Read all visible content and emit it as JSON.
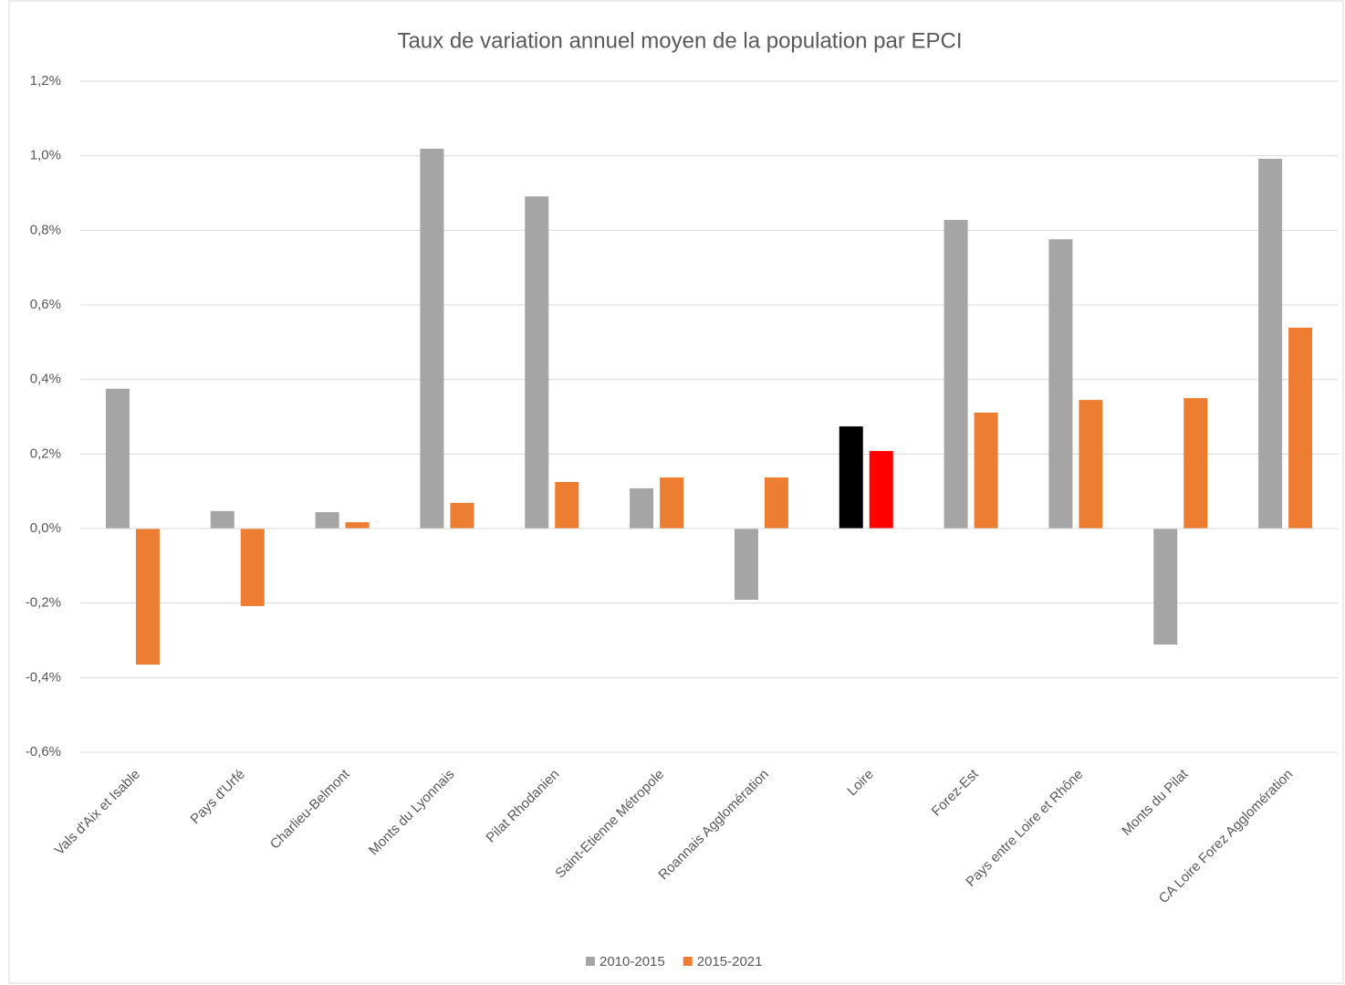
{
  "chart_data": {
    "type": "bar",
    "title": "Taux de variation annuel moyen de la population par EPCI",
    "categories": [
      "Vals d'Aix et Isable",
      "Pays d'Urfé",
      "Charlieu-Belmont",
      "Monts du Lyonnais",
      "Pilat Rhodanien",
      "Saint-Etienne Métropole",
      "Roannais Agglomération",
      "Loire",
      "Forez-Est",
      "Pays entre Loire et Rhône",
      "Monts du Pilat",
      "CA Loire Forez Agglomération"
    ],
    "series": [
      {
        "name": "2010-2015",
        "color": "#a5a5a5",
        "colors": [
          "#a5a5a5",
          "#a5a5a5",
          "#a5a5a5",
          "#a5a5a5",
          "#a5a5a5",
          "#a5a5a5",
          "#a5a5a5",
          "#000000",
          "#a5a5a5",
          "#a5a5a5",
          "#a5a5a5",
          "#a5a5a5"
        ],
        "values": [
          0.375,
          0.047,
          0.044,
          1.019,
          0.891,
          0.108,
          -0.191,
          0.274,
          0.828,
          0.776,
          -0.311,
          0.992
        ]
      },
      {
        "name": "2015-2021",
        "color": "#ed7d31",
        "colors": [
          "#ed7d31",
          "#ed7d31",
          "#ed7d31",
          "#ed7d31",
          "#ed7d31",
          "#ed7d31",
          "#ed7d31",
          "#ff0000",
          "#ed7d31",
          "#ed7d31",
          "#ed7d31",
          "#ed7d31"
        ],
        "values": [
          -0.365,
          -0.208,
          0.017,
          0.069,
          0.125,
          0.137,
          0.137,
          0.208,
          0.311,
          0.345,
          0.35,
          0.539
        ]
      }
    ],
    "ylim": [
      -0.6,
      1.2
    ],
    "yticks": [
      {
        "value": -0.6,
        "label": "-0,6%"
      },
      {
        "value": -0.4,
        "label": "-0,4%"
      },
      {
        "value": -0.2,
        "label": "-0,2%"
      },
      {
        "value": 0,
        "label": "0,0%"
      },
      {
        "value": 0.2,
        "label": "0,2%"
      },
      {
        "value": 0.4,
        "label": "0,4%"
      },
      {
        "value": 0.6,
        "label": "0,6%"
      },
      {
        "value": 0.8,
        "label": "0,8%"
      },
      {
        "value": 1.0,
        "label": "1,0%"
      },
      {
        "value": 1.2,
        "label": "1,2%"
      }
    ],
    "grid": true,
    "legend": "bottom"
  }
}
